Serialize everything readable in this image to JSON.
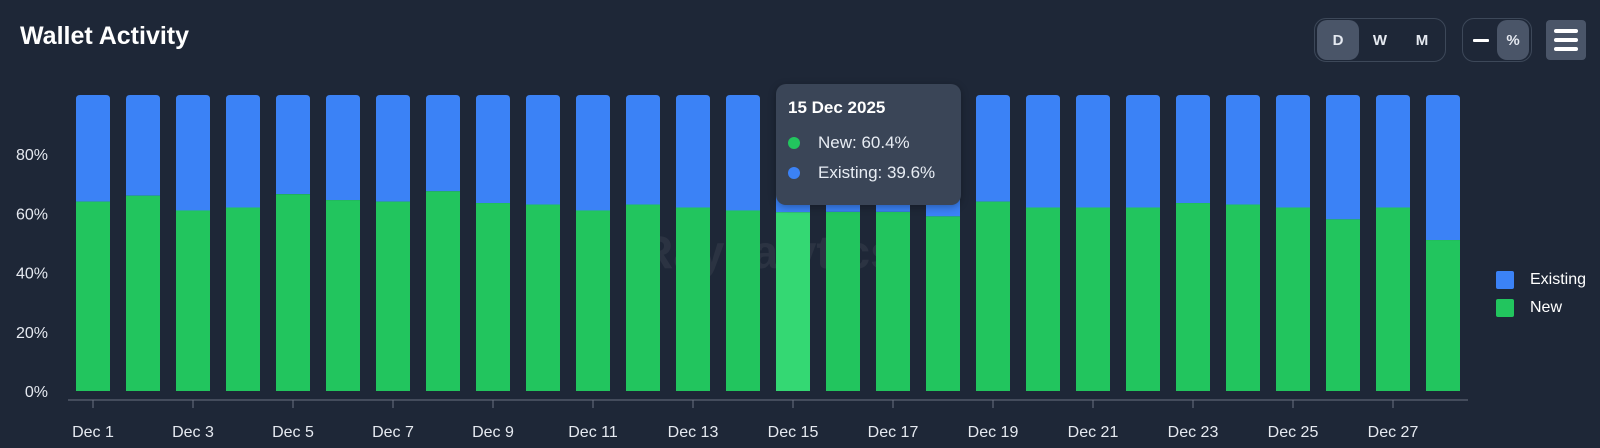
{
  "title": "Wallet Activity",
  "range_buttons": [
    "D",
    "W",
    "M"
  ],
  "active_range": "D",
  "mode_buttons": {
    "percent": "%"
  },
  "active_mode": "%",
  "legend": [
    {
      "label": "Existing",
      "color": "#3b82f6"
    },
    {
      "label": "New",
      "color": "#22c55e"
    }
  ],
  "watermark": "Raynalytics",
  "tooltip": {
    "date": "15 Dec 2025",
    "new": "New: 60.4%",
    "existing": "Existing: 39.6%"
  },
  "colors": {
    "new": "#22c55e",
    "existing": "#3b82f6",
    "highlight": "#34d873",
    "background": "#1e2737"
  },
  "chart_data": {
    "type": "bar",
    "stacked": true,
    "highlighted_category": "Dec 15",
    "categories": [
      "Dec 1",
      "Dec 2",
      "Dec 3",
      "Dec 4",
      "Dec 5",
      "Dec 6",
      "Dec 7",
      "Dec 8",
      "Dec 9",
      "Dec 10",
      "Dec 11",
      "Dec 12",
      "Dec 13",
      "Dec 14",
      "Dec 15",
      "Dec 16",
      "Dec 17",
      "Dec 18",
      "Dec 19",
      "Dec 20",
      "Dec 21",
      "Dec 22",
      "Dec 23",
      "Dec 24",
      "Dec 25",
      "Dec 26",
      "Dec 27",
      "Dec 28"
    ],
    "x_tick_labels": [
      "Dec 1",
      "Dec 3",
      "Dec 5",
      "Dec 7",
      "Dec 9",
      "Dec 11",
      "Dec 13",
      "Dec 15",
      "Dec 17",
      "Dec 19",
      "Dec 21",
      "Dec 23",
      "Dec 25",
      "Dec 27"
    ],
    "series": [
      {
        "name": "New",
        "values": [
          64,
          66,
          61,
          62,
          66.5,
          64.5,
          64,
          67.5,
          63.5,
          63,
          61,
          63,
          62,
          61,
          60.4,
          60.5,
          60.5,
          59,
          64,
          62,
          62,
          62,
          63.5,
          63,
          62,
          58,
          62,
          51
        ]
      },
      {
        "name": "Existing",
        "values": [
          36,
          34,
          39,
          38,
          33.5,
          35.5,
          36,
          32.5,
          36.5,
          37,
          39,
          37,
          38,
          39,
          39.6,
          39.5,
          39.5,
          41,
          36,
          38,
          38,
          38,
          36.5,
          37,
          38,
          42,
          38,
          49
        ]
      }
    ],
    "y_ticks": [
      "0%",
      "20%",
      "40%",
      "60%",
      "80%"
    ],
    "ylim": [
      0,
      100
    ],
    "grid": false,
    "legend_position": "right"
  }
}
